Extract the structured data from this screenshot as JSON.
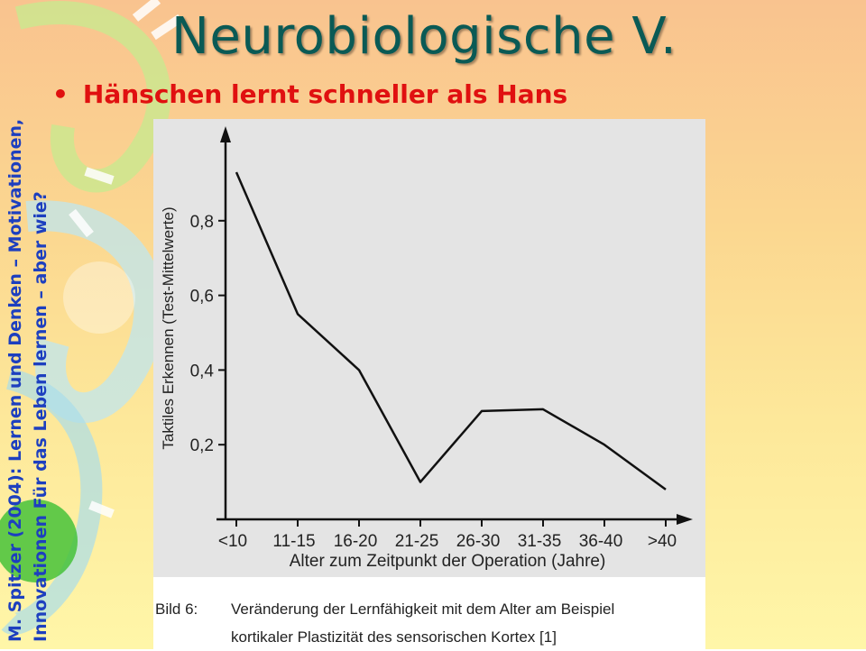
{
  "slide": {
    "title": "Neurobiologische V.",
    "bullet": "Hänschen lernt schneller als Hans",
    "side_text_1": "M. Spitzer (2004): Lernen und Denken – Motivationen,",
    "side_text_2": "Innovationen Für das Leben lernen – aber wie?"
  },
  "caption": {
    "label": "Bild 6:",
    "line1": "Veränderung der Lernfähigkeit mit dem Alter am Beispiel",
    "line2": "kortikaler Plastizität des sensorischen Kortex [1]"
  },
  "chart_data": {
    "type": "line",
    "categories": [
      "<10",
      "11-15",
      "16-20",
      "21-25",
      "26-30",
      "31-35",
      "36-40",
      ">40"
    ],
    "values": [
      0.93,
      0.55,
      0.4,
      0.1,
      0.29,
      0.295,
      0.2,
      0.08
    ],
    "yticks": [
      0.2,
      0.4,
      0.6,
      0.8
    ],
    "ytick_labels": [
      "0,2",
      "0,4",
      "0,6",
      "0,8"
    ],
    "ylim": [
      0,
      1.0
    ],
    "xlabel": "Alter zum Zeitpunkt der Operation (Jahre)",
    "ylabel": "Taktiles Erkennen (Test-Mittelwerte)",
    "grid": false,
    "legend": "none",
    "line_color": "#111111"
  },
  "colors": {
    "title": "#0a5a55",
    "bullet": "#e01010",
    "side_text": "#1d3fbf"
  }
}
